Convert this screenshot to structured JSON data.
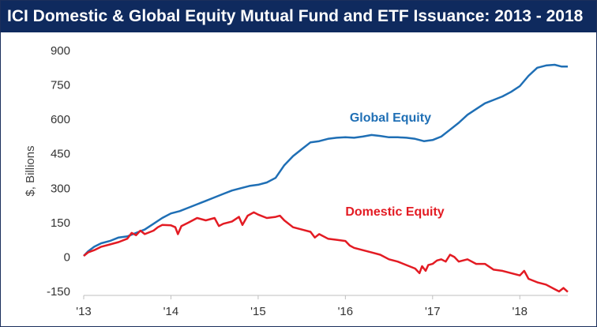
{
  "chart_data": {
    "type": "line",
    "title": "ICI Domestic & Global Equity Mutual Fund and ETF Issuance: 2013 - 2018",
    "ylabel": "$, Billions",
    "xlabel": "",
    "ylim": [
      -150,
      900
    ],
    "xlim": [
      2013.0,
      2018.55
    ],
    "y_ticks": [
      900,
      750,
      600,
      450,
      300,
      150,
      0,
      -150
    ],
    "x_ticks": [
      {
        "value": 2013,
        "label": "'13"
      },
      {
        "value": 2014,
        "label": "'14"
      },
      {
        "value": 2015,
        "label": "'15"
      },
      {
        "value": 2016,
        "label": "'16"
      },
      {
        "value": 2017,
        "label": "'17"
      },
      {
        "value": 2018,
        "label": "'18"
      }
    ],
    "grid": false,
    "legend": "annotations",
    "series": [
      {
        "name": "Global Equity",
        "color": "#1f6fb5",
        "label_at": [
          2016.05,
          590
        ],
        "points": [
          [
            2013.0,
            5
          ],
          [
            2013.05,
            25
          ],
          [
            2013.12,
            45
          ],
          [
            2013.2,
            60
          ],
          [
            2013.3,
            70
          ],
          [
            2013.4,
            85
          ],
          [
            2013.5,
            90
          ],
          [
            2013.6,
            105
          ],
          [
            2013.7,
            120
          ],
          [
            2013.8,
            145
          ],
          [
            2013.9,
            170
          ],
          [
            2014.0,
            190
          ],
          [
            2014.1,
            200
          ],
          [
            2014.2,
            215
          ],
          [
            2014.3,
            230
          ],
          [
            2014.4,
            245
          ],
          [
            2014.5,
            260
          ],
          [
            2014.6,
            275
          ],
          [
            2014.7,
            290
          ],
          [
            2014.8,
            300
          ],
          [
            2014.9,
            310
          ],
          [
            2015.0,
            315
          ],
          [
            2015.1,
            325
          ],
          [
            2015.2,
            345
          ],
          [
            2015.3,
            400
          ],
          [
            2015.4,
            440
          ],
          [
            2015.5,
            470
          ],
          [
            2015.6,
            500
          ],
          [
            2015.7,
            505
          ],
          [
            2015.8,
            515
          ],
          [
            2015.9,
            520
          ],
          [
            2016.0,
            522
          ],
          [
            2016.1,
            520
          ],
          [
            2016.2,
            525
          ],
          [
            2016.3,
            532
          ],
          [
            2016.4,
            528
          ],
          [
            2016.5,
            522
          ],
          [
            2016.6,
            522
          ],
          [
            2016.7,
            520
          ],
          [
            2016.8,
            515
          ],
          [
            2016.9,
            505
          ],
          [
            2017.0,
            510
          ],
          [
            2017.1,
            525
          ],
          [
            2017.2,
            555
          ],
          [
            2017.3,
            585
          ],
          [
            2017.4,
            620
          ],
          [
            2017.5,
            645
          ],
          [
            2017.6,
            670
          ],
          [
            2017.7,
            685
          ],
          [
            2017.8,
            700
          ],
          [
            2017.9,
            720
          ],
          [
            2018.0,
            745
          ],
          [
            2018.1,
            790
          ],
          [
            2018.2,
            825
          ],
          [
            2018.3,
            835
          ],
          [
            2018.4,
            838
          ],
          [
            2018.48,
            830
          ],
          [
            2018.55,
            830
          ]
        ]
      },
      {
        "name": "Domestic Equity",
        "color": "#e31b23",
        "label_at": [
          2016.0,
          180
        ],
        "points": [
          [
            2013.0,
            5
          ],
          [
            2013.05,
            20
          ],
          [
            2013.12,
            30
          ],
          [
            2013.2,
            45
          ],
          [
            2013.3,
            55
          ],
          [
            2013.4,
            65
          ],
          [
            2013.5,
            80
          ],
          [
            2013.55,
            105
          ],
          [
            2013.6,
            95
          ],
          [
            2013.65,
            115
          ],
          [
            2013.7,
            100
          ],
          [
            2013.8,
            115
          ],
          [
            2013.85,
            130
          ],
          [
            2013.9,
            140
          ],
          [
            2014.0,
            138
          ],
          [
            2014.05,
            130
          ],
          [
            2014.08,
            100
          ],
          [
            2014.12,
            135
          ],
          [
            2014.2,
            150
          ],
          [
            2014.3,
            170
          ],
          [
            2014.4,
            160
          ],
          [
            2014.5,
            170
          ],
          [
            2014.55,
            135
          ],
          [
            2014.6,
            145
          ],
          [
            2014.7,
            155
          ],
          [
            2014.78,
            175
          ],
          [
            2014.82,
            140
          ],
          [
            2014.88,
            180
          ],
          [
            2014.95,
            195
          ],
          [
            2015.0,
            185
          ],
          [
            2015.1,
            170
          ],
          [
            2015.2,
            175
          ],
          [
            2015.25,
            180
          ],
          [
            2015.3,
            160
          ],
          [
            2015.4,
            130
          ],
          [
            2015.5,
            120
          ],
          [
            2015.6,
            110
          ],
          [
            2015.65,
            85
          ],
          [
            2015.7,
            100
          ],
          [
            2015.8,
            80
          ],
          [
            2015.9,
            75
          ],
          [
            2016.0,
            70
          ],
          [
            2016.05,
            50
          ],
          [
            2016.1,
            40
          ],
          [
            2016.2,
            30
          ],
          [
            2016.3,
            20
          ],
          [
            2016.4,
            10
          ],
          [
            2016.5,
            -10
          ],
          [
            2016.6,
            -20
          ],
          [
            2016.7,
            -35
          ],
          [
            2016.8,
            -50
          ],
          [
            2016.85,
            -70
          ],
          [
            2016.88,
            -40
          ],
          [
            2016.92,
            -60
          ],
          [
            2016.95,
            -35
          ],
          [
            2017.0,
            -30
          ],
          [
            2017.05,
            -15
          ],
          [
            2017.1,
            -10
          ],
          [
            2017.15,
            -20
          ],
          [
            2017.2,
            10
          ],
          [
            2017.25,
            0
          ],
          [
            2017.3,
            -20
          ],
          [
            2017.4,
            -10
          ],
          [
            2017.5,
            -30
          ],
          [
            2017.6,
            -30
          ],
          [
            2017.7,
            -55
          ],
          [
            2017.8,
            -60
          ],
          [
            2017.9,
            -70
          ],
          [
            2018.0,
            -80
          ],
          [
            2018.05,
            -60
          ],
          [
            2018.1,
            -95
          ],
          [
            2018.2,
            -110
          ],
          [
            2018.3,
            -120
          ],
          [
            2018.4,
            -140
          ],
          [
            2018.45,
            -150
          ],
          [
            2018.5,
            -135
          ],
          [
            2018.55,
            -152
          ]
        ]
      }
    ]
  }
}
